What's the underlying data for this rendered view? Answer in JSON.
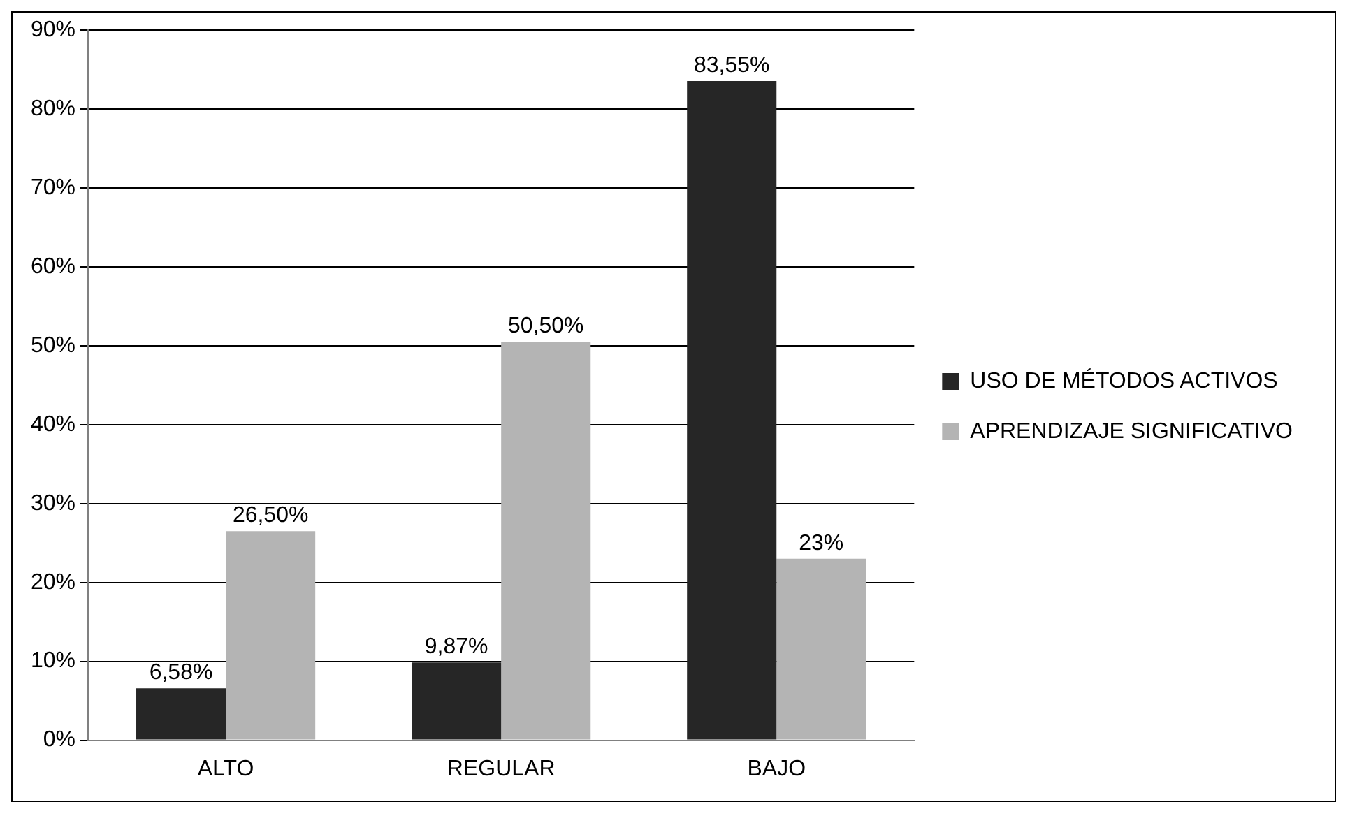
{
  "chart_data": {
    "type": "bar",
    "categories": [
      "ALTO",
      "REGULAR",
      "BAJO"
    ],
    "series": [
      {
        "name": "USO DE MÉTODOS ACTIVOS",
        "color": "#262626",
        "values": [
          6.58,
          9.87,
          83.55
        ],
        "value_labels": [
          "6,58%",
          "9,87%",
          "83,55%"
        ]
      },
      {
        "name": "APRENDIZAJE SIGNIFICATIVO",
        "color": "#b4b4b4",
        "values": [
          26.5,
          50.5,
          23
        ],
        "value_labels": [
          "26,50%",
          "50,50%",
          "23%"
        ]
      }
    ],
    "ylim": [
      0,
      90
    ],
    "yticks": [
      {
        "value": 0,
        "label": "0%"
      },
      {
        "value": 10,
        "label": "10%"
      },
      {
        "value": 20,
        "label": "20%"
      },
      {
        "value": 30,
        "label": "30%"
      },
      {
        "value": 40,
        "label": "40%"
      },
      {
        "value": 50,
        "label": "50%"
      },
      {
        "value": 60,
        "label": "60%"
      },
      {
        "value": 70,
        "label": "70%"
      },
      {
        "value": 80,
        "label": "80%"
      },
      {
        "value": 90,
        "label": "90%"
      }
    ],
    "grid": "y",
    "legend": "right"
  }
}
